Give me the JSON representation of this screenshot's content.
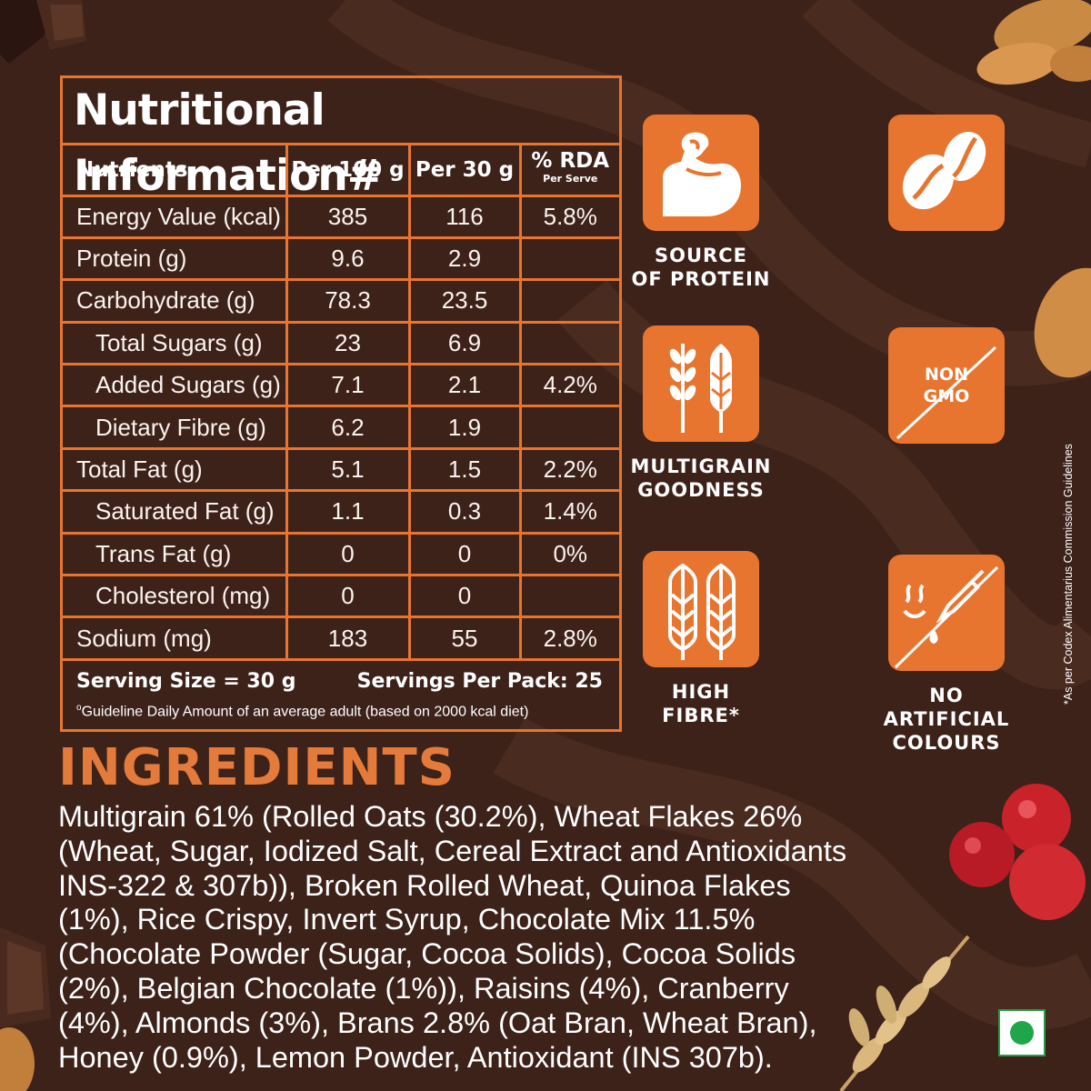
{
  "nutrition": {
    "title": "Nutritional Information#",
    "headers": {
      "nutrients": "Nutrients",
      "per100": "Per 100 g",
      "per30": "Per 30 g",
      "rda": "% RDA",
      "rda_sub": "Per Serve"
    },
    "rows": [
      {
        "name": "Energy Value (kcal)",
        "per100": "385",
        "per30": "116",
        "rda": "5.8%"
      },
      {
        "name": "Protein (g)",
        "per100": "9.6",
        "per30": "2.9",
        "rda": ""
      },
      {
        "name": "Carbohydrate (g)",
        "per100": "78.3",
        "per30": "23.5",
        "rda": ""
      },
      {
        "name": "Total Sugars (g)",
        "per100": "23",
        "per30": "6.9",
        "rda": ""
      },
      {
        "name": "Added Sugars (g)",
        "per100": "7.1",
        "per30": "2.1",
        "rda": "4.2%"
      },
      {
        "name": "Dietary Fibre (g)",
        "per100": "6.2",
        "per30": "1.9",
        "rda": ""
      },
      {
        "name": "Total Fat (g)",
        "per100": "5.1",
        "per30": "1.5",
        "rda": "2.2%"
      },
      {
        "name": "Saturated Fat (g)",
        "per100": "1.1",
        "per30": "0.3",
        "rda": "1.4%"
      },
      {
        "name": "Trans Fat (g)",
        "per100": "0",
        "per30": "0",
        "rda": "0%"
      },
      {
        "name": "Cholesterol (mg)",
        "per100": "0",
        "per30": "0",
        "rda": ""
      },
      {
        "name": "Sodium (mg)",
        "per100": "183",
        "per30": "55",
        "rda": "2.8%"
      }
    ],
    "serving_size": "Serving Size = 30 g",
    "servings_per_pack": "Servings Per Pack: 25",
    "guideline_mark": "o",
    "guideline": "Guideline Daily Amount of an average adult (based on 2000 kcal diet)"
  },
  "ingredients": {
    "title": "INGREDIENTS",
    "text": "Multigrain 61% (Rolled Oats (30.2%), Wheat Flakes 26% (Wheat, Sugar, Iodized Salt, Cereal Extract and Antioxidants INS-322 & 307b)), Broken Rolled Wheat, Quinoa Flakes (1%), Rice Crispy, Invert Syrup, Chocolate Mix 11.5% (Chocolate Powder (Sugar, Cocoa Solids),  Cocoa Solids (2%), Belgian Chocolate (1%)), Raisins (4%), Cranberry (4%), Almonds (3%), Brans 2.8% (Oat Bran, Wheat Bran), Honey (0.9%), Lemon Powder, Antioxidant (INS 307b)."
  },
  "badges": {
    "protein": {
      "label": "SOURCE\nOF PROTEIN",
      "icon": "flexed-arm-icon"
    },
    "coffee": {
      "label": "",
      "icon": "coffee-beans-icon"
    },
    "multigrain": {
      "label": "MULTIGRAIN\nGOODNESS",
      "icon": "grain-stalks-icon"
    },
    "non_gmo": {
      "text": "NON\nGMO",
      "icon": "no-gmo-icon"
    },
    "fibre": {
      "label": "HIGH\nFIBRE*",
      "icon": "wheat-icon"
    },
    "colours": {
      "label": "NO ARTIFICIAL\nCOLOURS",
      "icon": "no-dropper-icon"
    }
  },
  "footnote": "*As per Codex Alimentarius Commission Guidelines",
  "colors": {
    "background": "#3d221a",
    "accent": "#e8752f",
    "ingredients_title": "#e57b3b",
    "veg_mark": "#1fa64b"
  }
}
